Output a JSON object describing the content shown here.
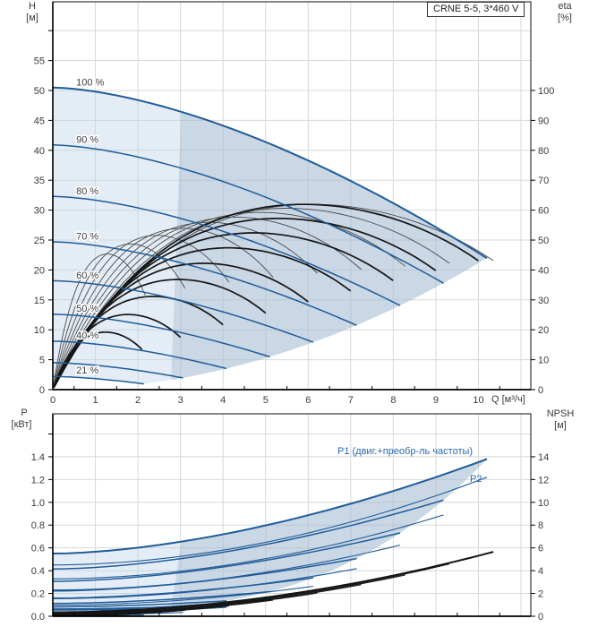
{
  "title_box": {
    "label": "CRNE 5-5, 3*460 V"
  },
  "axis_labels": {
    "h": "H",
    "h_unit": "[м]",
    "eta": "eta",
    "eta_unit": "[%]",
    "q_unit": "Q [м³/ч]",
    "p": "P",
    "p_unit": "[кВт]",
    "npsh": "NPSH",
    "npsh_unit": "[м]"
  },
  "curve_labels": {
    "p1": "P1 (двиг.+преобр-ль частоты)",
    "p2": "P2"
  },
  "colors": {
    "curve_blue": "#1f5c99",
    "label_blue": "#2a6ab0",
    "eta_gray": "#4a4a4a",
    "black": "#151515",
    "grid": "#d8d8d8",
    "axis": "#222222",
    "tick_text": "#3a3a3a",
    "region_light": "rgba(190,211,233,0.42)",
    "region_dark": "rgba(150,170,195,0.33)"
  },
  "chart_data": {
    "charts": [
      {
        "type": "line",
        "title": "CRNE 5-5, 3*460 V",
        "xlabel": "Q [м³/ч]",
        "x_ticks": [
          0,
          1,
          2,
          3,
          4,
          5,
          6,
          7,
          8,
          9,
          10
        ],
        "x_minor_step": 0.5,
        "x_range": [
          0,
          11.23
        ],
        "left_axis": {
          "label": "H [м]",
          "ticks": [
            0,
            5,
            10,
            15,
            20,
            25,
            30,
            35,
            40,
            45,
            50,
            55
          ],
          "unlabeled_ticks": [
            60
          ],
          "range": [
            0,
            64.8
          ]
        },
        "right_axis": {
          "label": "eta [%]",
          "ticks": [
            0,
            10,
            20,
            30,
            40,
            50,
            60,
            70,
            80,
            90,
            100
          ],
          "unlabeled_ticks": [],
          "range": [
            0,
            129.6
          ]
        },
        "speed_curves": [
          {
            "pct": 100,
            "label": "100 %",
            "h_shutoff": 50.5,
            "q_tip": 10.2,
            "h_tip": 22.0
          },
          {
            "pct": 90,
            "label": "90 %",
            "h_shutoff": 40.9,
            "q_tip": 9.18,
            "h_tip": 17.8
          },
          {
            "pct": 80,
            "label": "80 %",
            "h_shutoff": 32.3,
            "q_tip": 8.16,
            "h_tip": 14.1
          },
          {
            "pct": 70,
            "label": "70 %",
            "h_shutoff": 24.7,
            "q_tip": 7.14,
            "h_tip": 10.8
          },
          {
            "pct": 60,
            "label": "60 %",
            "h_shutoff": 18.2,
            "q_tip": 6.12,
            "h_tip": 7.9
          },
          {
            "pct": 50,
            "label": "50 %",
            "h_shutoff": 12.6,
            "q_tip": 5.1,
            "h_tip": 5.5
          },
          {
            "pct": 40,
            "label": "40 %",
            "h_shutoff": 8.1,
            "q_tip": 4.08,
            "h_tip": 3.5
          },
          {
            "pct": 30,
            "label": null,
            "h_shutoff": 4.5,
            "q_tip": 3.06,
            "h_tip": 2.0
          },
          {
            "pct": 21,
            "label": "21 %",
            "h_shutoff": 2.2,
            "q_tip": 2.14,
            "h_tip": 1.0
          }
        ],
        "eta": {
          "peak": 62,
          "value_at_max_flow": 43
        },
        "operating_region": {
          "q_min_top": 3.02,
          "q_min_bottom": 2.78
        }
      },
      {
        "type": "line",
        "x_range": [
          0,
          11.23
        ],
        "left_axis": {
          "label": "P [кВт]",
          "ticks": [
            "0.0",
            "0.2",
            "0.4",
            "0.6",
            "0.8",
            "1.0",
            "1.2",
            "1.4"
          ],
          "unlabeled_ticks": [
            1.6
          ],
          "range": [
            0,
            1.78
          ]
        },
        "right_axis": {
          "label": "NPSH [м]",
          "ticks": [
            0,
            2,
            4,
            6,
            8,
            10,
            12,
            14
          ],
          "unlabeled_ticks": [],
          "range": [
            0,
            17.8
          ]
        },
        "p1": {
          "label": "P1 (двиг.+преобр-ль частоты)",
          "p_at_q0": 0.55,
          "p_at_qmax": 1.38
        },
        "p2": {
          "label": "P2",
          "p_at_q0": 0.45,
          "p_at_qmax": 1.22
        },
        "npsh": {
          "value_at_q0": 0.35,
          "value_at_qmax": 5.7,
          "q_max": 10.35
        }
      }
    ],
    "model": {
      "h_droop": 0.565,
      "h_exp": 1.6,
      "eta_shape": [
        4.6,
        -7.2,
        5.2,
        -1.87
      ],
      "eta_norm": 1.05,
      "eta_thin_pow": 0.2,
      "eta_thick_pow": 0.75,
      "eta_max": 62,
      "p1_base": 0.05,
      "p1_k0": 0.5,
      "p1_k1": 0.83,
      "p1_exp": 1.7,
      "p2_k0": 0.45,
      "p2_k1": 0.77,
      "p2_exp": 1.9,
      "npsh_base": 0.35,
      "npsh_k": 5.3,
      "npsh_exp": 1.93
    }
  }
}
